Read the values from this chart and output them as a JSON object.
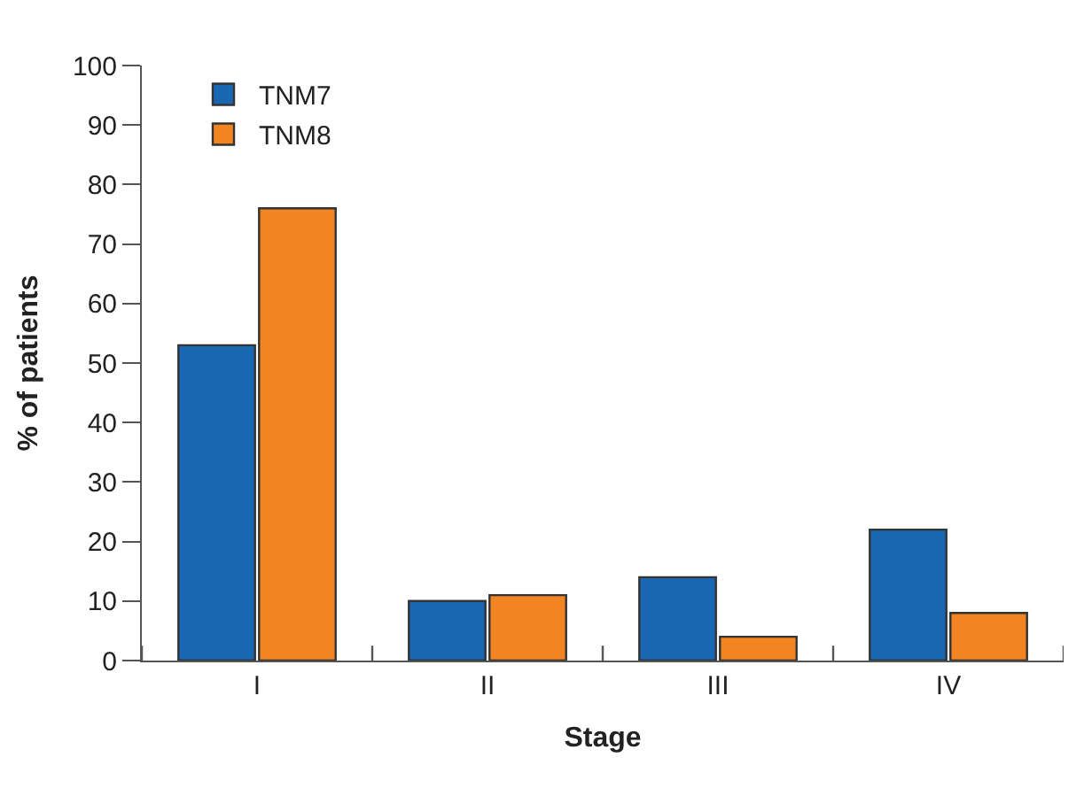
{
  "chart_data": {
    "type": "bar",
    "xlabel": "Stage",
    "ylabel": "% of patients",
    "categories": [
      "I",
      "II",
      "III",
      "IV"
    ],
    "series": [
      {
        "name": "TNM7",
        "color": "#1967b2",
        "values": [
          53,
          10,
          14,
          22
        ]
      },
      {
        "name": "TNM8",
        "color": "#f28522",
        "values": [
          76,
          11,
          4,
          8
        ]
      }
    ],
    "ylim": [
      0,
      100
    ],
    "yticks": [
      0,
      10,
      20,
      30,
      40,
      50,
      60,
      70,
      80,
      90,
      100
    ],
    "legend": "top left"
  }
}
